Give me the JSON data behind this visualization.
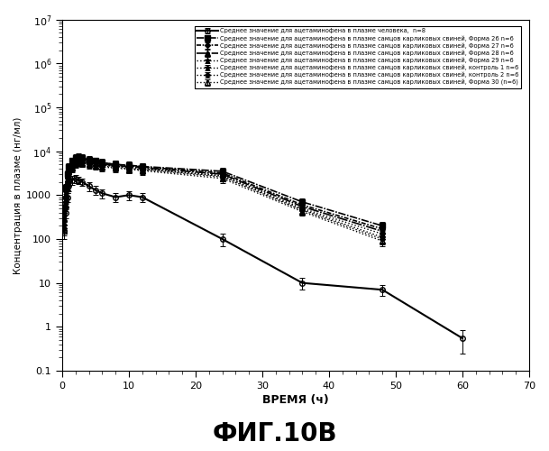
{
  "title_below": "ФИГ.10В",
  "xlabel": "ВРЕМЯ (ч)",
  "ylabel": "Концентрация в плазме (нг/мл)",
  "xlim": [
    0,
    70
  ],
  "ylim_log": [
    0.1,
    10000000.0
  ],
  "xticks": [
    0,
    10,
    20,
    30,
    40,
    50,
    60,
    70
  ],
  "background": "#ffffff",
  "series": [
    {
      "label": "Среднее значение для ацетаминофена в плазме человека,  n=8",
      "x": [
        0.25,
        0.5,
        0.75,
        1.0,
        1.5,
        2.0,
        2.5,
        3.0,
        4.0,
        5.0,
        6.0,
        8.0,
        10.0,
        12.0,
        24.0,
        36.0,
        48.0,
        60.0
      ],
      "y": [
        150,
        400,
        900,
        1600,
        2200,
        2400,
        2200,
        2000,
        1600,
        1300,
        1100,
        900,
        1000,
        900,
        100,
        10,
        7,
        0.55
      ],
      "yerr": [
        50,
        100,
        200,
        400,
        500,
        500,
        450,
        400,
        350,
        300,
        250,
        200,
        250,
        200,
        30,
        3,
        2,
        0.3
      ],
      "linestyle": "-",
      "marker": "o",
      "markersize": 4,
      "color": "#000000",
      "fillstyle": "none",
      "linewidth": 1.5,
      "dashes": []
    },
    {
      "label": "Среднее значение для ацетаминофена в плазме самцов карликовых свиней, Форма 26 n=6",
      "x": [
        0.25,
        0.5,
        0.75,
        1.0,
        1.5,
        2.0,
        2.5,
        3.0,
        4.0,
        5.0,
        6.0,
        8.0,
        10.0,
        12.0,
        24.0,
        36.0,
        48.0
      ],
      "y": [
        500,
        1500,
        3000,
        4500,
        6000,
        7000,
        7500,
        7000,
        6500,
        6000,
        5500,
        5000,
        4800,
        4500,
        3500,
        700,
        200
      ],
      "yerr": [
        100,
        300,
        600,
        900,
        1200,
        1400,
        1500,
        1400,
        1300,
        1200,
        1100,
        1000,
        960,
        900,
        700,
        150,
        50
      ],
      "linestyle": "-",
      "marker": "s",
      "markersize": 4,
      "color": "#000000",
      "fillstyle": "full",
      "linewidth": 1.2,
      "dashes": [
        5,
        1,
        1,
        1
      ]
    },
    {
      "label": "Среднее значение для ацетаминофена в плазме самцов карликовых свиней, Форма 27 n=6",
      "x": [
        0.25,
        0.5,
        0.75,
        1.0,
        1.5,
        2.0,
        2.5,
        3.0,
        4.0,
        5.0,
        6.0,
        8.0,
        10.0,
        12.0,
        24.0,
        36.0,
        48.0
      ],
      "y": [
        400,
        1200,
        2500,
        4000,
        5500,
        6500,
        7000,
        6600,
        6200,
        5800,
        5400,
        5000,
        4700,
        4400,
        3200,
        600,
        170
      ],
      "yerr": [
        80,
        240,
        500,
        800,
        1100,
        1300,
        1400,
        1300,
        1250,
        1160,
        1080,
        1000,
        940,
        880,
        640,
        120,
        40
      ],
      "linestyle": "-",
      "marker": "D",
      "markersize": 3,
      "color": "#000000",
      "fillstyle": "full",
      "linewidth": 1.2,
      "dashes": [
        3,
        1,
        1,
        1
      ]
    },
    {
      "label": "Среднее значение для ацетаминофена в плазме самцов карликовых свиней, Форма 28 n=6",
      "x": [
        0.25,
        0.5,
        0.75,
        1.0,
        1.5,
        2.0,
        2.5,
        3.0,
        4.0,
        5.0,
        6.0,
        8.0,
        10.0,
        12.0,
        24.0,
        36.0,
        48.0
      ],
      "y": [
        300,
        1000,
        2200,
        3500,
        5000,
        6000,
        6500,
        6200,
        5800,
        5400,
        5100,
        4700,
        4500,
        4200,
        3000,
        550,
        150
      ],
      "yerr": [
        60,
        200,
        440,
        700,
        1000,
        1200,
        1300,
        1250,
        1160,
        1080,
        1020,
        940,
        900,
        840,
        600,
        110,
        38
      ],
      "linestyle": "-",
      "marker": "^",
      "markersize": 4,
      "color": "#000000",
      "fillstyle": "full",
      "linewidth": 1.2,
      "dashes": [
        7,
        1,
        1,
        1
      ]
    },
    {
      "label": "Среднее значение для ацетаминофена в плазме самцов карликовых свиней, Форма 29 n=6",
      "x": [
        0.25,
        0.5,
        0.75,
        1.0,
        1.5,
        2.0,
        2.5,
        3.0,
        4.0,
        5.0,
        6.0,
        8.0,
        10.0,
        12.0,
        24.0,
        36.0,
        48.0
      ],
      "y": [
        250,
        900,
        2000,
        3200,
        4700,
        5800,
        6300,
        6000,
        5600,
        5200,
        4900,
        4600,
        4300,
        4000,
        2800,
        500,
        130
      ],
      "yerr": [
        50,
        180,
        400,
        640,
        940,
        1160,
        1260,
        1200,
        1120,
        1040,
        980,
        920,
        860,
        800,
        560,
        100,
        32
      ],
      "linestyle": ":",
      "marker": "*",
      "markersize": 5,
      "color": "#000000",
      "fillstyle": "full",
      "linewidth": 1.0,
      "dashes": []
    },
    {
      "label": "Среднее значение для ацетаминофена в плазме самцов карликовых свиней, контроль 1 n=6",
      "x": [
        0.25,
        0.5,
        0.75,
        1.0,
        1.5,
        2.0,
        2.5,
        3.0,
        4.0,
        5.0,
        6.0,
        8.0,
        10.0,
        12.0,
        24.0,
        36.0,
        48.0
      ],
      "y": [
        200,
        800,
        1800,
        3000,
        4500,
        5600,
        6100,
        5800,
        5400,
        5100,
        4800,
        4500,
        4200,
        3900,
        2700,
        470,
        110
      ],
      "yerr": [
        40,
        160,
        360,
        600,
        900,
        1120,
        1220,
        1160,
        1080,
        1020,
        960,
        900,
        840,
        780,
        540,
        94,
        28
      ],
      "linestyle": ":",
      "marker": "*",
      "markersize": 5,
      "color": "#000000",
      "fillstyle": "none",
      "linewidth": 1.0,
      "dashes": []
    },
    {
      "label": "Среднее значение для ацетаминофена в плазме самцов карликовых свиней, контроль 2 n=6",
      "x": [
        0.25,
        0.5,
        0.75,
        1.0,
        1.5,
        2.0,
        2.5,
        3.0,
        4.0,
        5.0,
        6.0,
        8.0,
        10.0,
        12.0,
        24.0,
        36.0,
        48.0
      ],
      "y": [
        180,
        700,
        1600,
        2800,
        4300,
        5400,
        5900,
        5600,
        5200,
        4900,
        4600,
        4300,
        4000,
        3800,
        2600,
        450,
        100
      ],
      "yerr": [
        36,
        140,
        320,
        560,
        860,
        1080,
        1180,
        1120,
        1040,
        980,
        920,
        860,
        800,
        760,
        520,
        90,
        25
      ],
      "linestyle": ":",
      "marker": "D",
      "markersize": 3,
      "color": "#000000",
      "fillstyle": "full",
      "linewidth": 1.0,
      "dashes": []
    },
    {
      "label": "Среднее значение для ацетаминофена в плазме самцов карликовых свиней, Форма 30 (n=6)",
      "x": [
        0.25,
        0.5,
        0.75,
        1.0,
        1.5,
        2.0,
        2.5,
        3.0,
        4.0,
        5.0,
        6.0,
        8.0,
        10.0,
        12.0,
        24.0,
        36.0,
        48.0
      ],
      "y": [
        150,
        600,
        1400,
        2600,
        4100,
        5200,
        5700,
        5400,
        5000,
        4700,
        4400,
        4100,
        3900,
        3600,
        2400,
        420,
        90
      ],
      "yerr": [
        30,
        120,
        280,
        520,
        820,
        1040,
        1140,
        1080,
        1000,
        940,
        880,
        820,
        780,
        720,
        480,
        84,
        22
      ],
      "linestyle": ":",
      "marker": "^",
      "markersize": 4,
      "color": "#000000",
      "fillstyle": "none",
      "linewidth": 1.0,
      "dashes": []
    }
  ]
}
